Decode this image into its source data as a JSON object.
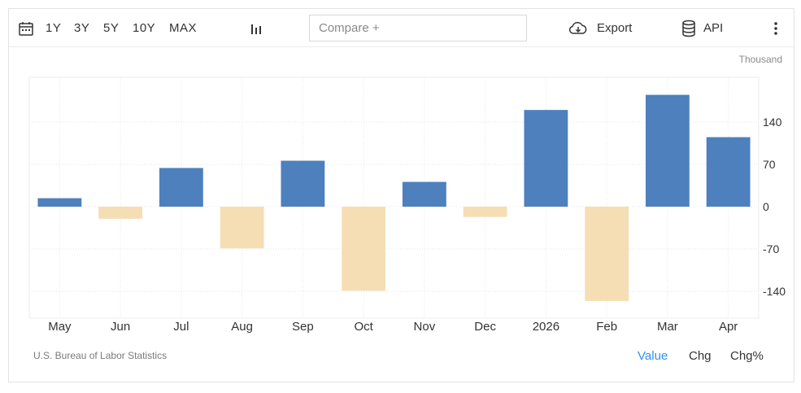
{
  "toolbar": {
    "ranges": [
      "1Y",
      "3Y",
      "5Y",
      "10Y",
      "MAX"
    ],
    "compare_placeholder": "Compare +",
    "export_label": "Export",
    "api_label": "API"
  },
  "icons": [
    "calendar-icon",
    "bar-chart-icon",
    "cloud-download-icon",
    "database-icon",
    "more-vertical-icon"
  ],
  "colors": {
    "positive": "#4d80bd",
    "negative": "#f5deb3",
    "accent": "#2f8ef4"
  },
  "chart_data": {
    "type": "bar",
    "unit_label": "Thousand",
    "categories": [
      "May",
      "Jun",
      "Jul",
      "Aug",
      "Sep",
      "Oct",
      "Nov",
      "Dec",
      "2026",
      "Feb",
      "Mar",
      "Apr"
    ],
    "values": [
      14,
      -20,
      64,
      -69,
      76,
      -139,
      41,
      -17,
      160,
      -156,
      185,
      115
    ],
    "yticks": [
      140,
      70,
      0,
      -70,
      -140
    ],
    "ylim": [
      -185,
      210
    ],
    "grid": true,
    "legend": "none"
  },
  "footer": {
    "source": "U.S. Bureau of Labor Statistics",
    "modes": [
      "Value",
      "Chg",
      "Chg%"
    ],
    "active_mode": "Value"
  }
}
